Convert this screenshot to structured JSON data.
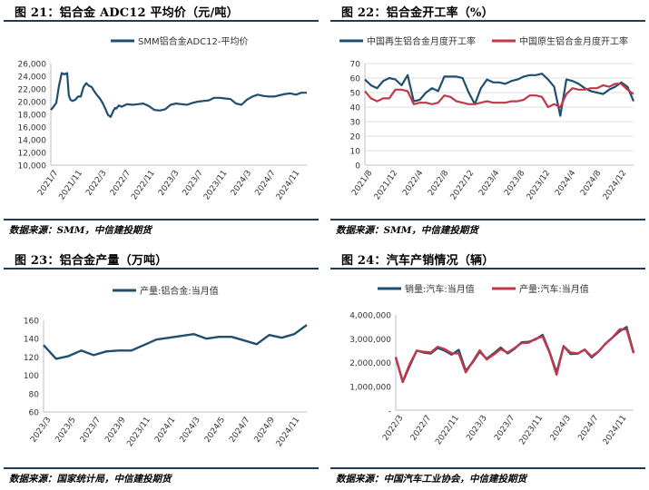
{
  "panels": [
    {
      "title": "图 21：铝合金 ADC12 平均价（元/吨）",
      "source": "数据来源：SMM，中信建投期货"
    },
    {
      "title": "图 22：铝合金开工率（%）",
      "source": "数据来源：SMM，中信建投期货"
    },
    {
      "title": "图 23：铝合金产量（万吨）",
      "source": "数据来源：国家统计局，中信建投期货"
    },
    {
      "title": "图 24：汽车产销情况（辆）",
      "source": "数据来源：中国汽车工业协会，中信建投期货"
    }
  ],
  "colors": {
    "navy": "#1f4e6e",
    "red": "#c0394b",
    "rule": "#1f3b5c"
  },
  "chart_data": [
    {
      "type": "line",
      "title": "",
      "legend_position": "top",
      "ylim": [
        10000,
        26000
      ],
      "yticks": [
        "10,000",
        "12,000",
        "14,000",
        "16,000",
        "18,000",
        "20,000",
        "22,000",
        "24,000",
        "26,000"
      ],
      "xticks": [
        "2021/7",
        "2021/11",
        "2022/3",
        "2022/7",
        "2022/11",
        "2023/3",
        "2023/7",
        "2023/11",
        "2024/3",
        "2024/7",
        "2024/11"
      ],
      "x_range": [
        0,
        47
      ],
      "grid": false,
      "series": [
        {
          "name": "SMM铝合金ADC12-平均价",
          "color": "#1f4e6e",
          "x": [
            0,
            0.5,
            1,
            1.5,
            2,
            2.5,
            3,
            3.3,
            3.6,
            4,
            4.5,
            5,
            5.5,
            6,
            6.5,
            7,
            7.5,
            8,
            8.5,
            9,
            9.5,
            10,
            10.5,
            11,
            11.5,
            11.8,
            12,
            12.5,
            13,
            14,
            15,
            16,
            17,
            18,
            19,
            20,
            21,
            22,
            23,
            24,
            25,
            26,
            27,
            28,
            29,
            30,
            31,
            32,
            33,
            34,
            35,
            36,
            37,
            38,
            39,
            40,
            41,
            42,
            43,
            44,
            45,
            46,
            47
          ],
          "y": [
            18700,
            19200,
            19800,
            22500,
            24500,
            24300,
            24500,
            21000,
            20300,
            20100,
            20300,
            20800,
            20800,
            22300,
            22900,
            22500,
            22300,
            21600,
            21000,
            20500,
            19800,
            18900,
            17900,
            17600,
            18600,
            19000,
            18900,
            19400,
            19200,
            19600,
            19500,
            19600,
            19700,
            19300,
            18700,
            18600,
            18800,
            19500,
            19700,
            19600,
            19500,
            19800,
            20000,
            20100,
            20200,
            20600,
            20600,
            20500,
            20400,
            19700,
            19500,
            20300,
            20800,
            21100,
            20900,
            20800,
            20800,
            21000,
            21200,
            21300,
            21100,
            21400,
            21400
          ]
        }
      ]
    },
    {
      "type": "line",
      "title": "",
      "legend_position": "top",
      "ylim": [
        0,
        70
      ],
      "yticks": [
        "0",
        "10",
        "20",
        "30",
        "40",
        "50",
        "60",
        "70"
      ],
      "xticks": [
        "2021/8",
        "2021/12",
        "2022/4",
        "2022/8",
        "2022/12",
        "2023/4",
        "2023/8",
        "2023/12",
        "2024/4",
        "2024/8",
        "2024/12"
      ],
      "x_range": [
        0,
        44
      ],
      "grid": true,
      "series": [
        {
          "name": "中国再生铝合金月度开工率",
          "color": "#1f4e6e",
          "x": [
            0,
            1,
            2,
            3,
            4,
            5,
            6,
            7,
            8,
            9,
            10,
            11,
            12,
            13,
            14,
            15,
            16,
            17,
            18,
            19,
            20,
            21,
            22,
            23,
            24,
            25,
            26,
            27,
            28,
            29,
            30,
            31,
            32,
            33,
            34,
            35,
            36,
            37,
            38,
            39,
            40,
            41,
            42,
            43,
            44
          ],
          "y": [
            59,
            55,
            53,
            58,
            60,
            59,
            55,
            62,
            44,
            45,
            50,
            53,
            51,
            61,
            61,
            61,
            60,
            50,
            42,
            53,
            59,
            57,
            57,
            56,
            58,
            59,
            61,
            62,
            62,
            63,
            59,
            54,
            34,
            59,
            58,
            56,
            53,
            51,
            50,
            49,
            52,
            54,
            57,
            54,
            44
          ]
        },
        {
          "name": "中国原生铝合金月度开工率",
          "color": "#c0394b",
          "x": [
            0,
            1,
            2,
            3,
            4,
            5,
            6,
            7,
            8,
            9,
            10,
            11,
            12,
            13,
            14,
            15,
            16,
            17,
            18,
            19,
            20,
            21,
            22,
            23,
            24,
            25,
            26,
            27,
            28,
            29,
            30,
            31,
            32,
            33,
            34,
            35,
            36,
            37,
            38,
            39,
            40,
            41,
            42,
            43,
            44
          ],
          "y": [
            51,
            46,
            44,
            46,
            46,
            52,
            52,
            51,
            42,
            43,
            43,
            42,
            43,
            48,
            47,
            44,
            43,
            42,
            42,
            43,
            44,
            43,
            43,
            43,
            44,
            44,
            45,
            48,
            48,
            47,
            40,
            42,
            40,
            49,
            53,
            52,
            52,
            53,
            53,
            55,
            54,
            56,
            56,
            52,
            49
          ]
        }
      ]
    },
    {
      "type": "line",
      "title": "",
      "legend_position": "top",
      "ylim": [
        60,
        160
      ],
      "yticks": [
        "60",
        "80",
        "100",
        "120",
        "140",
        "160"
      ],
      "xticks": [
        "2023/3",
        "2023/5",
        "2023/7",
        "2023/9",
        "2023/11",
        "2024/1",
        "2024/3",
        "2024/5",
        "2024/7",
        "2024/9",
        "2024/11"
      ],
      "x_range": [
        0,
        21
      ],
      "grid": false,
      "series": [
        {
          "name": "产量:铝合金:当月值",
          "color": "#1f4e6e",
          "x": [
            0,
            1,
            2,
            3,
            4,
            5,
            6,
            7,
            8,
            9,
            10,
            11,
            12,
            13,
            14,
            15,
            16,
            17,
            18,
            19,
            20,
            21
          ],
          "y": [
            133,
            118,
            121,
            127,
            122,
            126,
            127,
            127,
            133,
            139,
            141,
            143,
            145,
            140,
            142,
            142,
            138,
            134,
            144,
            141,
            145,
            155
          ]
        }
      ]
    },
    {
      "type": "line",
      "title": "",
      "legend_position": "top",
      "ylim": [
        0,
        4000000
      ],
      "yticks": [
        "-",
        "1,000,000",
        "2,000,000",
        "3,000,000",
        "4,000,000"
      ],
      "xticks": [
        "2022/3",
        "2022/7",
        "2022/11",
        "2023/3",
        "2023/7",
        "2023/11",
        "2024/3",
        "2024/7",
        "2024/11"
      ],
      "x_range": [
        0,
        34
      ],
      "grid": false,
      "series": [
        {
          "name": "销量:汽车:当月值",
          "color": "#1f4e6e",
          "x": [
            0,
            1,
            2,
            3,
            4,
            5,
            6,
            7,
            8,
            9,
            10,
            11,
            12,
            13,
            14,
            15,
            16,
            17,
            18,
            19,
            20,
            21,
            22,
            23,
            24,
            25,
            26,
            27,
            28,
            29,
            30,
            31,
            32,
            33,
            34
          ],
          "y": [
            2230000,
            1180000,
            1860000,
            2500000,
            2420000,
            2380000,
            2610000,
            2500000,
            2330000,
            2530000,
            1650000,
            2010000,
            2450000,
            2160000,
            2380000,
            2630000,
            2380000,
            2580000,
            2850000,
            2870000,
            2970000,
            3160000,
            2440000,
            1580000,
            2690000,
            2360000,
            2370000,
            2540000,
            2210000,
            2460000,
            2800000,
            3050000,
            3310000,
            3490000,
            2420000
          ]
        },
        {
          "name": "产量:汽车:当月值",
          "color": "#c0394b",
          "x": [
            0,
            1,
            2,
            3,
            4,
            5,
            6,
            7,
            8,
            9,
            10,
            11,
            12,
            13,
            14,
            15,
            16,
            17,
            18,
            19,
            20,
            21,
            22,
            23,
            24,
            25,
            26,
            27,
            28,
            29,
            30,
            31,
            32,
            33,
            34
          ],
          "y": [
            2210000,
            1200000,
            1930000,
            2490000,
            2450000,
            2420000,
            2660000,
            2560000,
            2390000,
            2380000,
            1590000,
            2040000,
            2510000,
            2130000,
            2330000,
            2560000,
            2420000,
            2610000,
            2820000,
            2830000,
            3000000,
            3090000,
            2410000,
            1490000,
            2680000,
            2420000,
            2380000,
            2540000,
            2260000,
            2470000,
            2790000,
            3050000,
            3390000,
            3400000,
            2390000
          ]
        }
      ]
    }
  ]
}
